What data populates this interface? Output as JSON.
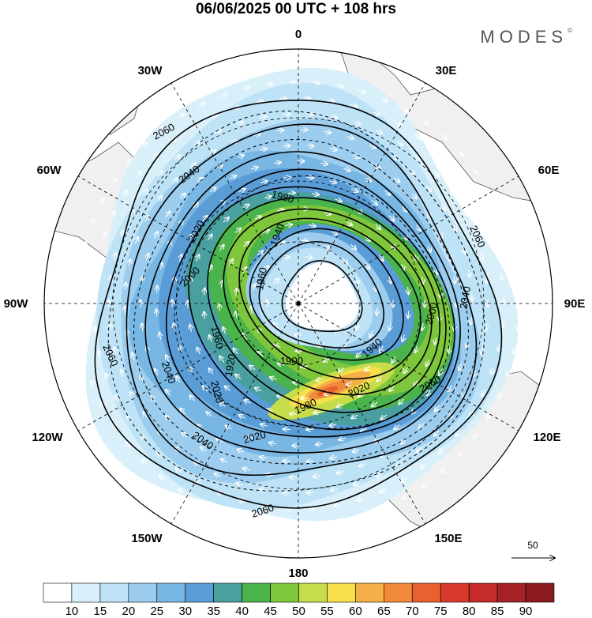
{
  "header": {
    "title": "06/06/2025  00 UTC  + 108 hrs",
    "brand": "MODES",
    "brand_mark": "©"
  },
  "map": {
    "projection": "north-polar-stereographic",
    "lon_labels": [
      "0",
      "30E",
      "60E",
      "90E",
      "120E",
      "150E",
      "180",
      "150W",
      "120W",
      "90W",
      "60W",
      "30W"
    ],
    "contour_labels": [
      "2060",
      "2040",
      "2020",
      "2000",
      "1980",
      "1960",
      "1940",
      "1920",
      "1900"
    ],
    "wind_reference_vector": "50",
    "colors": {
      "land": "#f0f0f0",
      "coast": "#555555",
      "contour": "#000000",
      "arrows": "#ffffff"
    }
  },
  "colorbar": {
    "labels": [
      "10",
      "15",
      "20",
      "25",
      "30",
      "35",
      "40",
      "45",
      "50",
      "55",
      "60",
      "65",
      "70",
      "75",
      "80",
      "85",
      "90"
    ],
    "colors": [
      "#ffffff",
      "#d9f0fb",
      "#bfe3f6",
      "#9ccdee",
      "#78b6e3",
      "#5a9cd6",
      "#4aa0a0",
      "#4bb34b",
      "#7ec63c",
      "#c6dc4a",
      "#f7e04a",
      "#f4b048",
      "#f08a3a",
      "#e7622f",
      "#d83a2b",
      "#c52b2b",
      "#a42226",
      "#8b1a1e"
    ]
  }
}
